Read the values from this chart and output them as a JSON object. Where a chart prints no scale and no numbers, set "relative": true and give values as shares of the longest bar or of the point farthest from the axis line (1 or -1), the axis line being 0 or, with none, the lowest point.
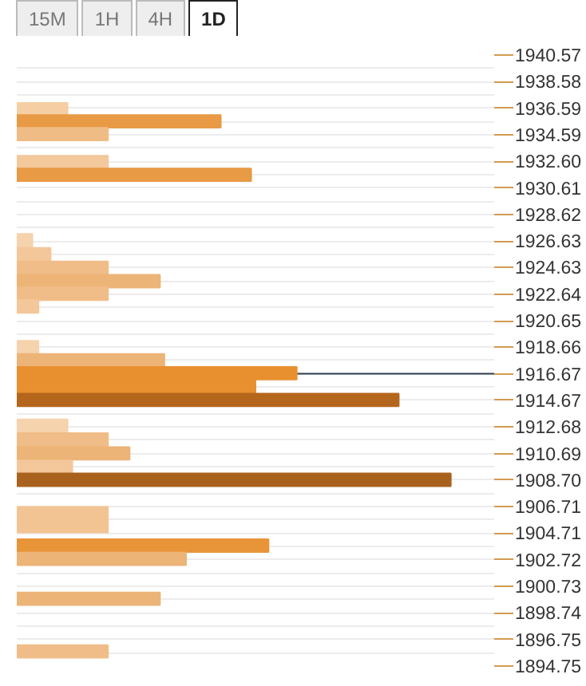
{
  "chart_data": {
    "type": "bar",
    "orientation": "horizontal",
    "relative": true,
    "annotations": [
      "15M",
      "1H",
      "4H",
      "1D"
    ],
    "x": [
      1936.5,
      1935.6,
      1934.64,
      1932.55,
      1931.59,
      1926.68,
      1925.64,
      1924.62,
      1923.61,
      1922.67,
      1921.71,
      1918.66,
      1917.68,
      1916.71,
      1915.7,
      1914.71,
      1912.77,
      1911.74,
      1910.7,
      1909.7,
      1908.72,
      1906.21,
      1905.24,
      1903.78,
      1902.79,
      1899.8,
      1895.85
    ],
    "values": [
      0.117,
      0.47,
      0.21,
      0.21,
      0.54,
      0.036,
      0.078,
      0.21,
      0.33,
      0.21,
      0.05,
      0.05,
      0.34,
      0.645,
      0.55,
      0.88,
      0.117,
      0.21,
      0.26,
      0.128,
      1.0,
      0.21,
      0.21,
      0.58,
      0.39,
      0.33,
      0.21
    ],
    "colors": [
      "#f5cfa3",
      "#e89a45",
      "#f0bc85",
      "#f3c89a",
      "#e89a45",
      "#f5d3ad",
      "#f3c79a",
      "#f0bd88",
      "#edb477",
      "#f0bd88",
      "#f3c79a",
      "#f5d3ad",
      "#edb477",
      "#e8902f",
      "#e8902f",
      "#b4661c",
      "#f5d3ad",
      "#f0bd88",
      "#edb477",
      "#f3c79a",
      "#a9621e",
      "#f3c493",
      "#f3c493",
      "#e8953a",
      "#edb477",
      "#edb477",
      "#f0bd88"
    ],
    "ylim": [
      1894.75,
      1940.57
    ],
    "yticks": [
      1940.57,
      1938.58,
      1936.59,
      1934.59,
      {
        "value": 1932.6,
        "label": "1932.60"
      },
      {
        "value": 1930.61,
        "label": "1930.61"
      },
      1928.62,
      1926.63,
      1924.63,
      1922.64,
      1920.65,
      1918.66,
      1916.67,
      1914.67,
      1912.68,
      1910.69,
      {
        "value": 1908.7,
        "label": "1908.70"
      },
      1906.71,
      1904.71,
      1902.72,
      1900.73,
      1898.74,
      1896.75,
      1894.75
    ],
    "ref_lines": [
      {
        "axis": "y",
        "value": 1916.67,
        "color": "#2c3e50"
      }
    ],
    "grid": "y"
  }
}
